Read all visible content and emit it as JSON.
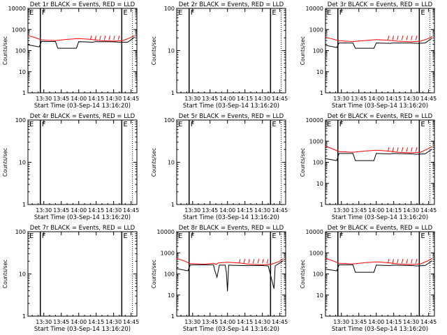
{
  "chart_data": [
    {
      "type": "line",
      "title": "Det 1r BLACK = Events, RED = LLD",
      "xlabel": "Start Time (03-Sep-14 13:16:20)",
      "ylabel": "Counts/sec",
      "yscale": "log",
      "ylim": [
        1,
        10000
      ],
      "grid": false,
      "x_ticks": [
        "13:30",
        "13:45",
        "14:00",
        "14:15",
        "14:30",
        "14:45"
      ],
      "y_ticks": [
        "1",
        "10",
        "100",
        "1000",
        "10000"
      ],
      "markers": [
        {
          "label": "F",
          "x": "13:27"
        },
        {
          "label": "E",
          "x": "14:37"
        }
      ],
      "series": [
        {
          "name": "BLACK",
          "color": "#000000",
          "points": [
            [
              "13:16",
              190
            ],
            [
              "13:26",
              150
            ],
            [
              "13:28",
              270
            ],
            [
              "13:40",
              270
            ],
            [
              "13:42",
              130
            ],
            [
              "13:58",
              130
            ],
            [
              "14:00",
              265
            ],
            [
              "14:12",
              250
            ],
            [
              "14:14",
              265
            ],
            [
              "14:30",
              260
            ],
            [
              "14:35",
              250
            ],
            [
              "14:42",
              250
            ],
            [
              "14:48",
              430
            ]
          ]
        },
        {
          "name": "RED",
          "color": "#ff0000",
          "points": [
            [
              "13:16",
              520
            ],
            [
              "13:22",
              420
            ],
            [
              "13:28",
              320
            ],
            [
              "13:40",
              300
            ],
            [
              "13:50",
              340
            ],
            [
              "14:00",
              370
            ],
            [
              "14:10",
              340
            ],
            [
              "14:18",
              300
            ],
            [
              "14:30",
              280
            ],
            [
              "14:38",
              300
            ],
            [
              "14:44",
              400
            ],
            [
              "14:48",
              520
            ]
          ]
        }
      ]
    },
    {
      "type": "line",
      "title": "Det 2r BLACK = Events, RED = LLD",
      "xlabel": "Start Time (03-Sep-14 13:16:20)",
      "ylabel": "Counts/sec",
      "yscale": "log",
      "ylim": [
        1,
        100
      ],
      "grid": false,
      "x_ticks": [
        "13:30",
        "13:45",
        "14:00",
        "14:15",
        "14:30",
        "14:45"
      ],
      "y_ticks": [
        "1",
        "10",
        "100"
      ],
      "markers": [
        {
          "label": "F",
          "x": "13:27"
        },
        {
          "label": "E",
          "x": "14:37"
        }
      ],
      "series": []
    },
    {
      "type": "line",
      "title": "Det 3r BLACK = Events, RED = LLD",
      "xlabel": "Start Time (03-Sep-14 13:16:20)",
      "ylabel": "Counts/sec",
      "yscale": "log",
      "ylim": [
        1,
        10000
      ],
      "grid": false,
      "x_ticks": [
        "13:30",
        "13:45",
        "14:00",
        "14:15",
        "14:30",
        "14:45"
      ],
      "y_ticks": [
        "1",
        "10",
        "100",
        "1000",
        "10000"
      ],
      "markers": [
        {
          "label": "F",
          "x": "13:27"
        },
        {
          "label": "E",
          "x": "14:37"
        }
      ],
      "series": [
        {
          "name": "BLACK",
          "color": "#000000",
          "points": [
            [
              "13:16",
              180
            ],
            [
              "13:26",
              140
            ],
            [
              "13:28",
              230
            ],
            [
              "13:40",
              230
            ],
            [
              "13:42",
              130
            ],
            [
              "13:58",
              130
            ],
            [
              "14:00",
              230
            ],
            [
              "14:12",
              220
            ],
            [
              "14:14",
              230
            ],
            [
              "14:30",
              230
            ],
            [
              "14:35",
              220
            ],
            [
              "14:42",
              230
            ],
            [
              "14:48",
              390
            ]
          ]
        },
        {
          "name": "RED",
          "color": "#ff0000",
          "points": [
            [
              "13:16",
              430
            ],
            [
              "13:22",
              360
            ],
            [
              "13:28",
              290
            ],
            [
              "13:40",
              270
            ],
            [
              "13:50",
              300
            ],
            [
              "14:00",
              330
            ],
            [
              "14:10",
              310
            ],
            [
              "14:18",
              280
            ],
            [
              "14:30",
              260
            ],
            [
              "14:38",
              280
            ],
            [
              "14:44",
              360
            ],
            [
              "14:48",
              460
            ]
          ]
        }
      ]
    },
    {
      "type": "line",
      "title": "Det 4r BLACK = Events, RED = LLD",
      "xlabel": "Start Time (03-Sep-14 13:16:20)",
      "ylabel": "Counts/sec",
      "yscale": "log",
      "ylim": [
        1,
        100
      ],
      "grid": false,
      "x_ticks": [
        "13:30",
        "13:45",
        "14:00",
        "14:15",
        "14:30",
        "14:45"
      ],
      "y_ticks": [
        "1",
        "10",
        "100"
      ],
      "markers": [
        {
          "label": "F",
          "x": "13:27"
        },
        {
          "label": "E",
          "x": "14:37"
        }
      ],
      "series": []
    },
    {
      "type": "line",
      "title": "Det 5r BLACK = Events, RED = LLD",
      "xlabel": "Start Time (03-Sep-14 13:16:20)",
      "ylabel": "Counts/sec",
      "yscale": "log",
      "ylim": [
        1,
        100
      ],
      "grid": false,
      "x_ticks": [
        "13:30",
        "13:45",
        "14:00",
        "14:15",
        "14:30",
        "14:45"
      ],
      "y_ticks": [
        "1",
        "10",
        "100"
      ],
      "markers": [
        {
          "label": "F",
          "x": "13:27"
        },
        {
          "label": "E",
          "x": "14:37"
        }
      ],
      "series": []
    },
    {
      "type": "line",
      "title": "Det 6r BLACK = Events, RED = LLD",
      "xlabel": "Start Time (03-Sep-14 13:16:20)",
      "ylabel": "Counts/sec",
      "yscale": "log",
      "ylim": [
        1,
        10000
      ],
      "grid": false,
      "x_ticks": [
        "13:30",
        "13:45",
        "14:00",
        "14:15",
        "14:30",
        "14:45"
      ],
      "y_ticks": [
        "1",
        "10",
        "100",
        "1000",
        "10000"
      ],
      "markers": [
        {
          "label": "F",
          "x": "13:27"
        },
        {
          "label": "E",
          "x": "14:37"
        }
      ],
      "series": [
        {
          "name": "BLACK",
          "color": "#000000",
          "points": [
            [
              "13:16",
              150
            ],
            [
              "13:26",
              120
            ],
            [
              "13:28",
              260
            ],
            [
              "13:40",
              260
            ],
            [
              "13:42",
              120
            ],
            [
              "13:58",
              120
            ],
            [
              "14:00",
              260
            ],
            [
              "14:12",
              250
            ],
            [
              "14:14",
              260
            ],
            [
              "14:30",
              250
            ],
            [
              "14:35",
              240
            ],
            [
              "14:42",
              250
            ],
            [
              "14:48",
              420
            ]
          ]
        },
        {
          "name": "RED",
          "color": "#ff0000",
          "points": [
            [
              "13:16",
              600
            ],
            [
              "13:22",
              440
            ],
            [
              "13:28",
              320
            ],
            [
              "13:40",
              300
            ],
            [
              "13:50",
              340
            ],
            [
              "14:00",
              370
            ],
            [
              "14:10",
              340
            ],
            [
              "14:18",
              300
            ],
            [
              "14:30",
              280
            ],
            [
              "14:38",
              300
            ],
            [
              "14:44",
              420
            ],
            [
              "14:48",
              560
            ]
          ]
        }
      ]
    },
    {
      "type": "line",
      "title": "Det 7r BLACK = Events, RED = LLD",
      "xlabel": "Start Time (03-Sep-14 13:16:20)",
      "ylabel": "Counts/sec",
      "yscale": "log",
      "ylim": [
        1,
        100
      ],
      "grid": false,
      "x_ticks": [
        "13:30",
        "13:45",
        "14:00",
        "14:15",
        "14:30",
        "14:45"
      ],
      "y_ticks": [
        "1",
        "10",
        "100"
      ],
      "markers": [
        {
          "label": "F",
          "x": "13:27"
        },
        {
          "label": "E",
          "x": "14:37"
        }
      ],
      "series": []
    },
    {
      "type": "line",
      "title": "Det 8r BLACK = Events, RED = LLD",
      "xlabel": "Start Time (03-Sep-14 13:16:20)",
      "ylabel": "Counts/sec",
      "yscale": "log",
      "ylim": [
        1,
        10000
      ],
      "grid": false,
      "x_ticks": [
        "13:30",
        "13:45",
        "14:00",
        "14:15",
        "14:30",
        "14:45"
      ],
      "y_ticks": [
        "1",
        "10",
        "100",
        "1000",
        "10000"
      ],
      "markers": [
        {
          "label": "F",
          "x": "13:27"
        },
        {
          "label": "E",
          "x": "14:37"
        }
      ],
      "series": [
        {
          "name": "BLACK",
          "color": "#000000",
          "points": [
            [
              "13:16",
              180
            ],
            [
              "13:26",
              140
            ],
            [
              "13:28",
              270
            ],
            [
              "13:48",
              270
            ],
            [
              "13:49",
              150
            ],
            [
              "13:51",
              70
            ],
            [
              "13:53",
              260
            ],
            [
              "13:58",
              260
            ],
            [
              "13:59",
              120
            ],
            [
              "14:00",
              15
            ],
            [
              "14:01",
              260
            ],
            [
              "14:12",
              250
            ],
            [
              "14:30",
              250
            ],
            [
              "14:35",
              240
            ],
            [
              "14:40",
              20
            ],
            [
              "14:41",
              240
            ],
            [
              "14:48",
              420
            ]
          ]
        },
        {
          "name": "RED",
          "color": "#ff0000",
          "points": [
            [
              "13:16",
              540
            ],
            [
              "13:22",
              430
            ],
            [
              "13:28",
              310
            ],
            [
              "13:40",
              290
            ],
            [
              "13:48",
              320
            ],
            [
              "13:50",
              280
            ],
            [
              "13:52",
              330
            ],
            [
              "14:00",
              360
            ],
            [
              "14:10",
              330
            ],
            [
              "14:18",
              290
            ],
            [
              "14:30",
              270
            ],
            [
              "14:38",
              290
            ],
            [
              "14:44",
              380
            ],
            [
              "14:48",
              520
            ]
          ]
        }
      ]
    },
    {
      "type": "line",
      "title": "Det 9r BLACK = Events, RED = LLD",
      "xlabel": "Start Time (03-Sep-14 13:16:20)",
      "ylabel": "Counts/sec",
      "yscale": "log",
      "ylim": [
        1,
        10000
      ],
      "grid": false,
      "x_ticks": [
        "13:30",
        "13:45",
        "14:00",
        "14:15",
        "14:30",
        "14:45"
      ],
      "y_ticks": [
        "1",
        "10",
        "100",
        "1000",
        "10000"
      ],
      "markers": [
        {
          "label": "F",
          "x": "13:27"
        },
        {
          "label": "E",
          "x": "14:37"
        }
      ],
      "series": [
        {
          "name": "BLACK",
          "color": "#000000",
          "points": [
            [
              "13:16",
              170
            ],
            [
              "13:26",
              140
            ],
            [
              "13:28",
              270
            ],
            [
              "13:40",
              270
            ],
            [
              "13:42",
              120
            ],
            [
              "13:58",
              120
            ],
            [
              "14:00",
              260
            ],
            [
              "14:12",
              250
            ],
            [
              "14:14",
              260
            ],
            [
              "14:30",
              250
            ],
            [
              "14:35",
              240
            ],
            [
              "14:42",
              250
            ],
            [
              "14:48",
              420
            ]
          ]
        },
        {
          "name": "RED",
          "color": "#ff0000",
          "points": [
            [
              "13:16",
              560
            ],
            [
              "13:22",
              430
            ],
            [
              "13:28",
              320
            ],
            [
              "13:40",
              300
            ],
            [
              "13:50",
              340
            ],
            [
              "14:00",
              370
            ],
            [
              "14:10",
              340
            ],
            [
              "14:18",
              300
            ],
            [
              "14:30",
              280
            ],
            [
              "14:38",
              300
            ],
            [
              "14:44",
              410
            ],
            [
              "14:48",
              540
            ]
          ]
        }
      ]
    }
  ]
}
